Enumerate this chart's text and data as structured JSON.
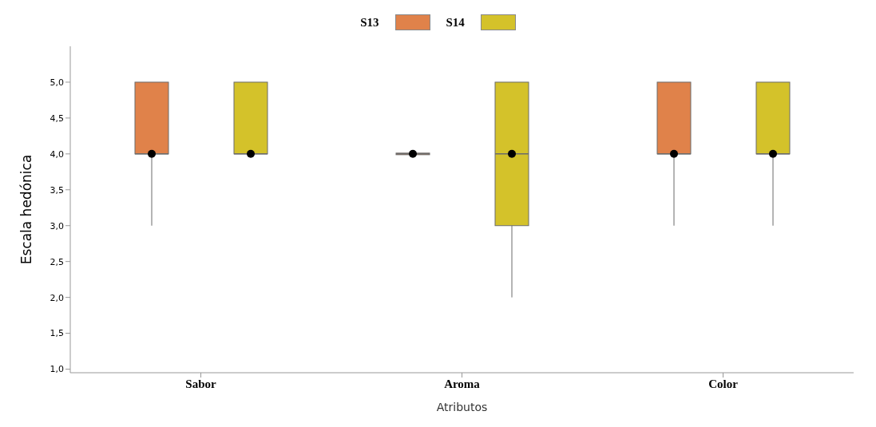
{
  "chart_data": {
    "type": "box",
    "xlabel": "Atributos",
    "ylabel": "Escala hedónica",
    "legend": "top",
    "categories": [
      "Sabor",
      "Aroma",
      "Color"
    ],
    "ylim": [
      0.95,
      5.5
    ],
    "yticks": [
      {
        "value": 1,
        "label": "1,0"
      },
      {
        "value": 1.5,
        "label": "1,5"
      },
      {
        "value": 2,
        "label": "2,0"
      },
      {
        "value": 2.5,
        "label": "2,5"
      },
      {
        "value": 3,
        "label": "3,0"
      },
      {
        "value": 3.5,
        "label": "3,5"
      },
      {
        "value": 4,
        "label": "4,0"
      },
      {
        "value": 4.5,
        "label": "4,5"
      },
      {
        "value": 5,
        "label": "5,0"
      }
    ],
    "series": [
      {
        "name": "S13",
        "color": "#e0824a",
        "boxes": [
          {
            "low": 3,
            "q1": 4,
            "median": 4,
            "q3": 5,
            "high": 5,
            "mean": 4
          },
          {
            "low": 4,
            "q1": 4,
            "median": 4,
            "q3": 4,
            "high": 4,
            "mean": 4
          },
          {
            "low": 3,
            "q1": 4,
            "median": 4,
            "q3": 5,
            "high": 5,
            "mean": 4
          }
        ]
      },
      {
        "name": "S14",
        "color": "#d4c22a",
        "boxes": [
          {
            "low": 4,
            "q1": 4,
            "median": 4,
            "q3": 5,
            "high": 5,
            "mean": 4
          },
          {
            "low": 2,
            "q1": 3,
            "median": 4,
            "q3": 5,
            "high": 5,
            "mean": 4
          },
          {
            "low": 3,
            "q1": 4,
            "median": 4,
            "q3": 5,
            "high": 5,
            "mean": 4
          }
        ]
      }
    ]
  }
}
